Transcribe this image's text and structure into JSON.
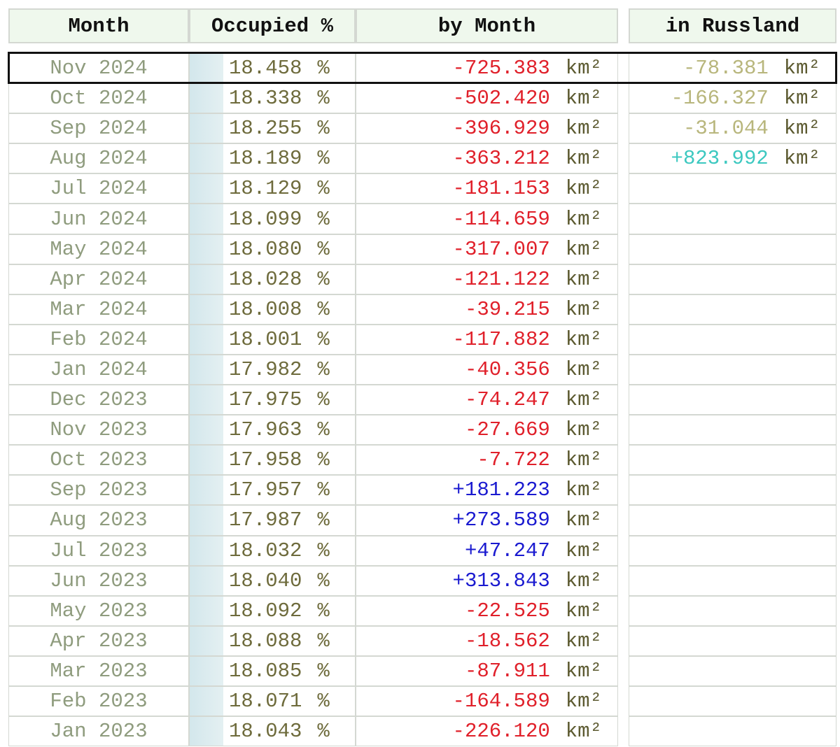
{
  "headers": [
    "Month",
    "Occupied %",
    "by Month",
    "in Russland"
  ],
  "unit_pct": "%",
  "unit_area": "km²",
  "colors": {
    "loss": "#e0202a",
    "gain": "#1a1ad0",
    "russland_loss": "#b8b67c",
    "russland_gain": "#3cc8c0",
    "header_bg": "#eff8ed"
  },
  "highlighted_row": "Nov 2024",
  "rows": [
    {
      "month": "Nov 2024",
      "occupied": "18.458",
      "by_month": "-725.383",
      "russland": "-78.381"
    },
    {
      "month": "Oct 2024",
      "occupied": "18.338",
      "by_month": "-502.420",
      "russland": "-166.327"
    },
    {
      "month": "Sep 2024",
      "occupied": "18.255",
      "by_month": "-396.929",
      "russland": "-31.044"
    },
    {
      "month": "Aug 2024",
      "occupied": "18.189",
      "by_month": "-363.212",
      "russland": "+823.992"
    },
    {
      "month": "Jul 2024",
      "occupied": "18.129",
      "by_month": "-181.153"
    },
    {
      "month": "Jun 2024",
      "occupied": "18.099",
      "by_month": "-114.659"
    },
    {
      "month": "May 2024",
      "occupied": "18.080",
      "by_month": "-317.007"
    },
    {
      "month": "Apr 2024",
      "occupied": "18.028",
      "by_month": "-121.122"
    },
    {
      "month": "Mar 2024",
      "occupied": "18.008",
      "by_month": "-39.215"
    },
    {
      "month": "Feb 2024",
      "occupied": "18.001",
      "by_month": "-117.882"
    },
    {
      "month": "Jan 2024",
      "occupied": "17.982",
      "by_month": "-40.356"
    },
    {
      "month": "Dec 2023",
      "occupied": "17.975",
      "by_month": "-74.247"
    },
    {
      "month": "Nov 2023",
      "occupied": "17.963",
      "by_month": "-27.669"
    },
    {
      "month": "Oct 2023",
      "occupied": "17.958",
      "by_month": "-7.722"
    },
    {
      "month": "Sep 2023",
      "occupied": "17.957",
      "by_month": "+181.223"
    },
    {
      "month": "Aug 2023",
      "occupied": "17.987",
      "by_month": "+273.589"
    },
    {
      "month": "Jul 2023",
      "occupied": "18.032",
      "by_month": "+47.247"
    },
    {
      "month": "Jun 2023",
      "occupied": "18.040",
      "by_month": "+313.843"
    },
    {
      "month": "May 2023",
      "occupied": "18.092",
      "by_month": "-22.525"
    },
    {
      "month": "Apr 2023",
      "occupied": "18.088",
      "by_month": "-18.562"
    },
    {
      "month": "Mar 2023",
      "occupied": "18.085",
      "by_month": "-87.911"
    },
    {
      "month": "Feb 2023",
      "occupied": "18.071",
      "by_month": "-164.589"
    },
    {
      "month": "Jan 2023",
      "occupied": "18.043",
      "by_month": "-226.120"
    }
  ]
}
